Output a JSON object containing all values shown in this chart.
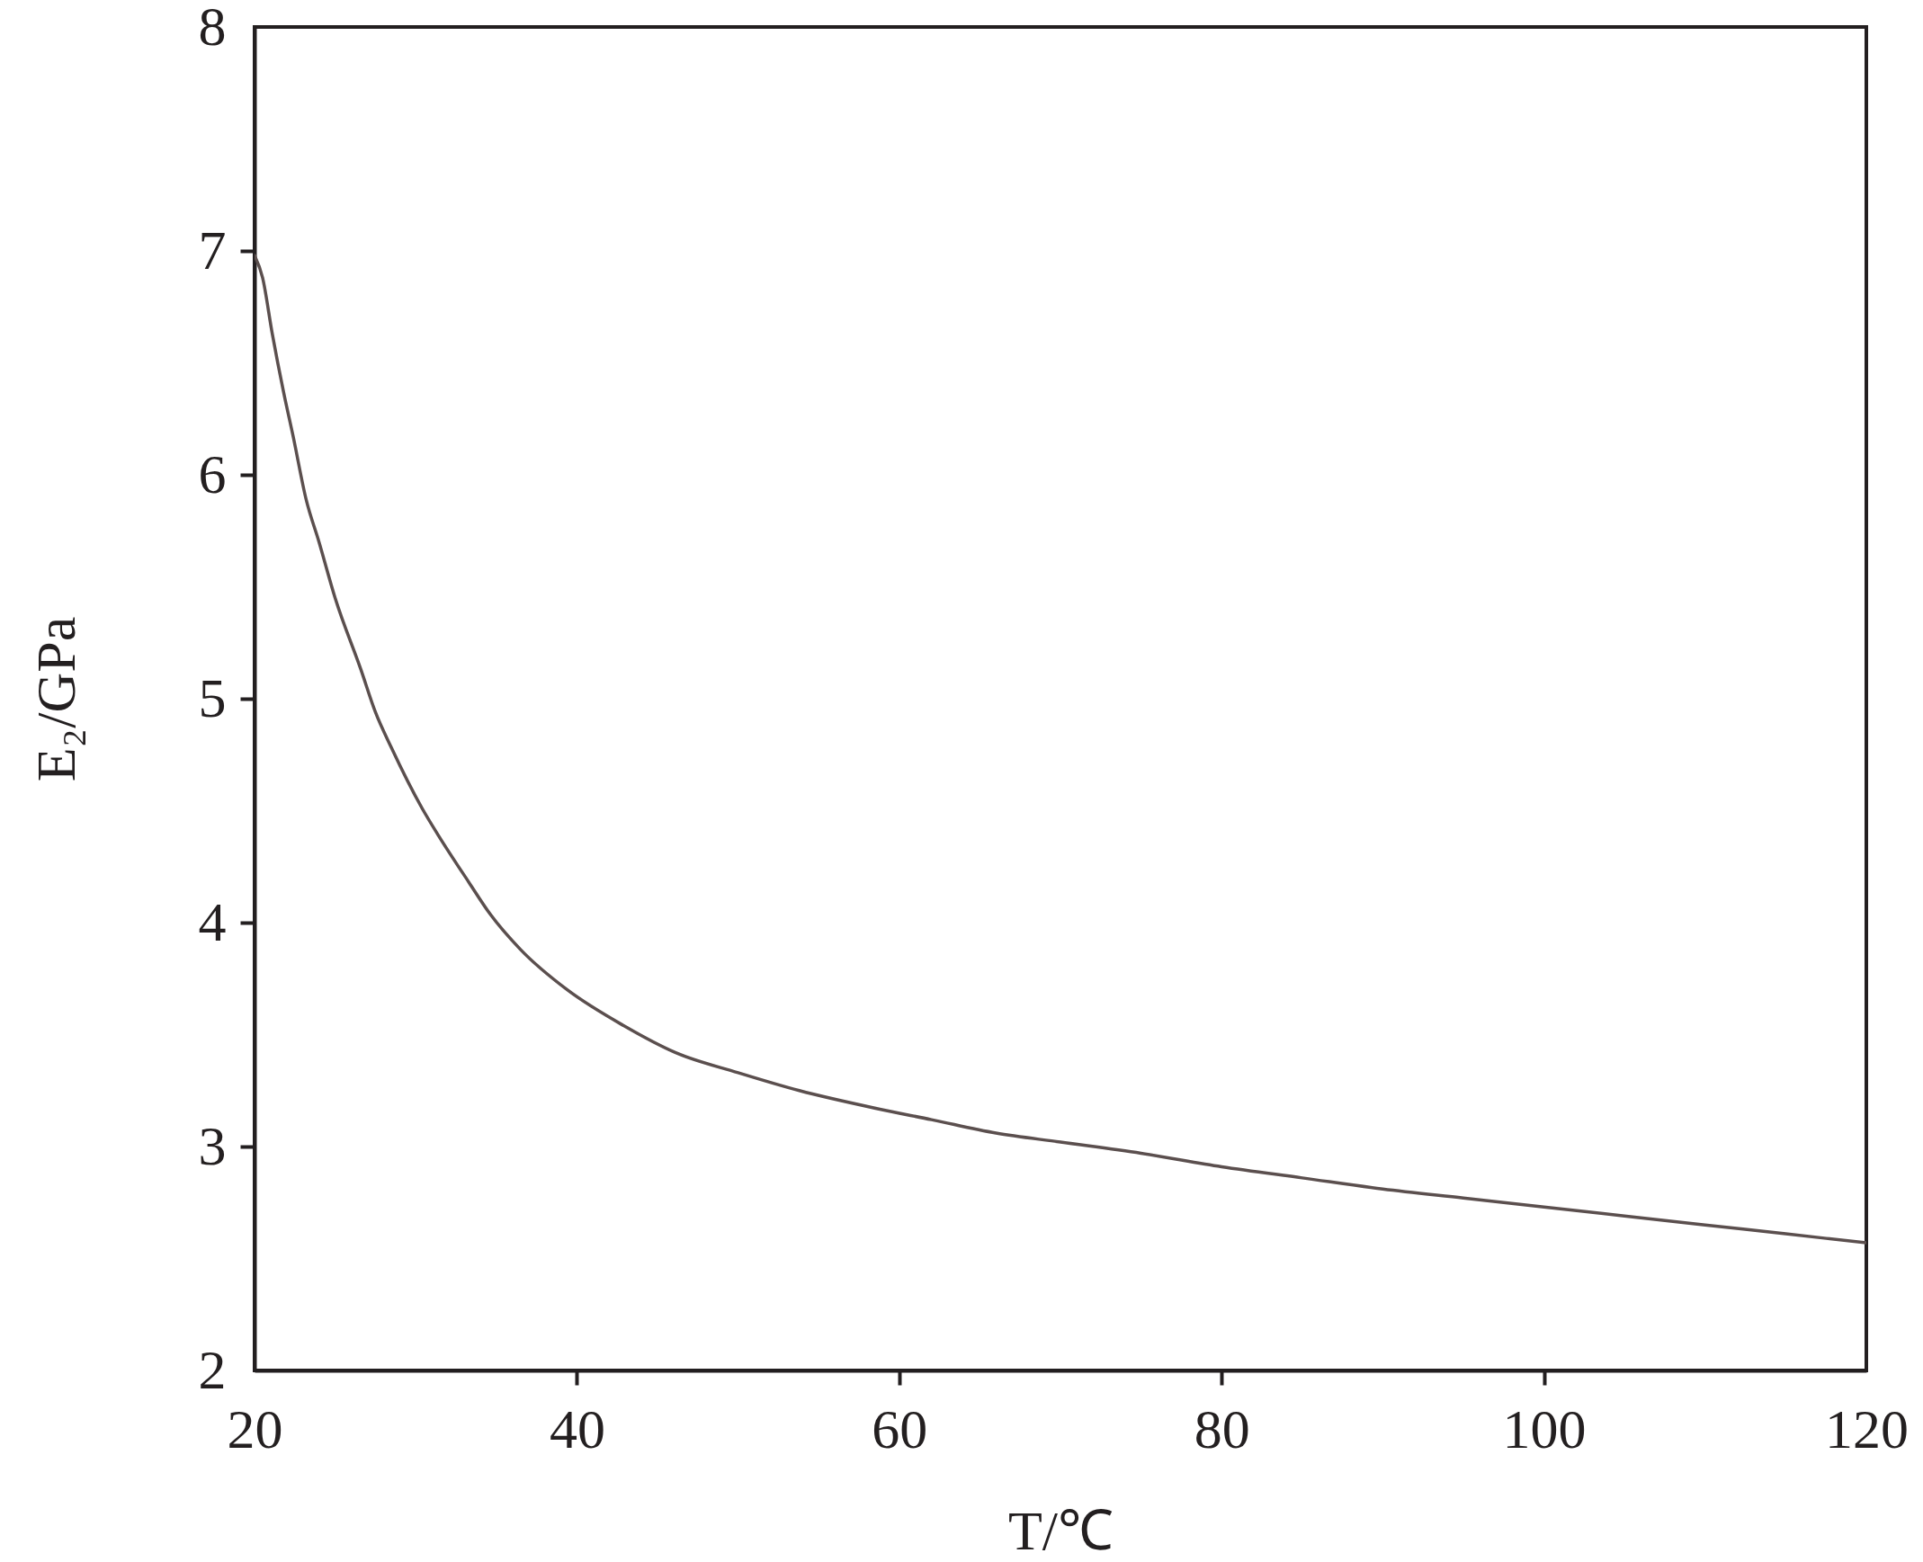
{
  "chart_data": {
    "type": "line",
    "xlabel": "T/℃",
    "ylabel": "E₂/GPa",
    "x": [
      20,
      20.5,
      21.1,
      21.8,
      22.4,
      23.2,
      24,
      25,
      26.6,
      27.5,
      28.5,
      30.4,
      31.4,
      33.3,
      34.6,
      36.5,
      39.4,
      42.9,
      46.1,
      50,
      53.8,
      58.6,
      62,
      66,
      70,
      75,
      80,
      85,
      90,
      95,
      100,
      105,
      110,
      115,
      120
    ],
    "series": [
      {
        "color": "#5b4f4e",
        "values": [
          6.98,
          6.88,
          6.63,
          6.37,
          6.17,
          5.89,
          5.7,
          5.45,
          5.13,
          4.94,
          4.78,
          4.51,
          4.39,
          4.18,
          4.04,
          3.88,
          3.7,
          3.54,
          3.42,
          3.33,
          3.25,
          3.17,
          3.12,
          3.06,
          3.02,
          2.97,
          2.91,
          2.86,
          2.81,
          2.77,
          2.73,
          2.69,
          2.65,
          2.61,
          2.57
        ]
      }
    ],
    "xlim": [
      20,
      120
    ],
    "ylim": [
      2,
      8
    ],
    "xticks": [
      20,
      40,
      60,
      80,
      100,
      120
    ],
    "yticks": [
      2,
      3,
      4,
      5,
      6,
      7,
      8
    ],
    "grid": false,
    "marker": "none",
    "line_style": "solid"
  }
}
